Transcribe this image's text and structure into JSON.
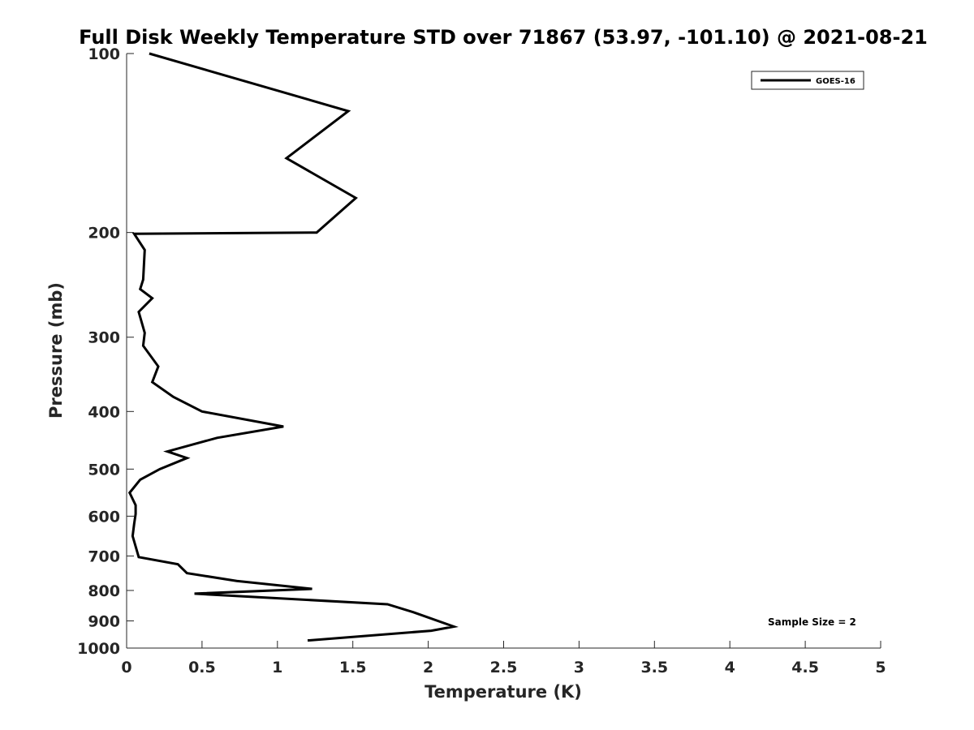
{
  "chart_data": {
    "type": "line",
    "title": "Full Disk Weekly Temperature STD over 71867 (53.97, -101.10) @ 2021-08-21",
    "xlabel": "Temperature (K)",
    "ylabel": "Pressure (mb)",
    "xlim": [
      0,
      5
    ],
    "ylim": [
      100,
      1000
    ],
    "y_scale": "log",
    "y_reversed": true,
    "x_ticks": [
      0,
      0.5,
      1,
      1.5,
      2,
      2.5,
      3,
      3.5,
      4,
      4.5,
      5
    ],
    "x_tick_labels": [
      "0",
      "0.5",
      "1",
      "1.5",
      "2",
      "2.5",
      "3",
      "3.5",
      "4",
      "4.5",
      "5"
    ],
    "y_ticks": [
      100,
      200,
      300,
      400,
      500,
      600,
      700,
      800,
      900,
      1000
    ],
    "y_tick_labels": [
      "100",
      "200",
      "300",
      "400",
      "500",
      "600",
      "700",
      "800",
      "900",
      "1000"
    ],
    "grid": false,
    "legend": {
      "position": "top-right",
      "entries": [
        "GOES-16"
      ]
    },
    "annotations": [
      {
        "text": "Sample Size = 2",
        "position": "bottom-right"
      }
    ],
    "series": [
      {
        "name": "GOES-16",
        "color": "#000000",
        "temperature": [
          0.15,
          1.47,
          1.06,
          1.52,
          1.26,
          0.05,
          0.12,
          0.11,
          0.09,
          0.17,
          0.08,
          0.12,
          0.11,
          0.21,
          0.17,
          0.31,
          0.5,
          1.04,
          0.6,
          0.27,
          0.4,
          0.22,
          0.09,
          0.02,
          0.06,
          0.06,
          0.05,
          0.04,
          0.08,
          0.34,
          0.4,
          0.73,
          1.23,
          0.45,
          1.73,
          1.9,
          2.17,
          2.02,
          1.2
        ],
        "pressure": [
          100,
          125,
          150,
          175,
          200,
          201,
          214,
          240,
          249,
          258,
          272,
          295,
          310,
          336,
          357,
          378,
          400,
          424,
          443,
          467,
          479,
          500,
          521,
          548,
          575,
          595,
          618,
          648,
          703,
          723,
          748,
          771,
          795,
          810,
          844,
          870,
          920,
          935,
          971
        ]
      }
    ]
  }
}
